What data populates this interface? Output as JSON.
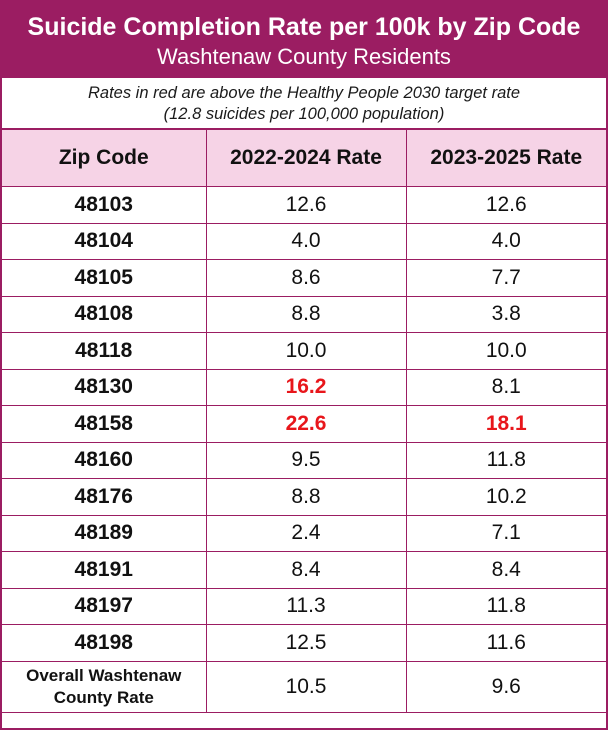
{
  "title": "Suicide Completion Rate per 100k by Zip Code",
  "subtitle": "Washtenaw County Residents",
  "note_line1": "Rates in red are above the Healthy People 2030 target rate",
  "note_line2": "(12.8 suicides per 100,000 population)",
  "colors": {
    "header_bar": "#9b1d62",
    "column_header_bg": "#f6d3e6",
    "above_target": "#e8161b"
  },
  "chart_data": {
    "type": "table",
    "target_rate": 12.8,
    "columns": [
      "Zip Code",
      "2022-2024 Rate",
      "2023-2025 Rate"
    ],
    "rows": [
      {
        "zip": "48103",
        "r2022": "12.6",
        "r2023": "12.6",
        "red2022": false,
        "red2023": false
      },
      {
        "zip": "48104",
        "r2022": "4.0",
        "r2023": "4.0",
        "red2022": false,
        "red2023": false
      },
      {
        "zip": "48105",
        "r2022": "8.6",
        "r2023": "7.7",
        "red2022": false,
        "red2023": false
      },
      {
        "zip": "48108",
        "r2022": "8.8",
        "r2023": "3.8",
        "red2022": false,
        "red2023": false
      },
      {
        "zip": "48118",
        "r2022": "10.0",
        "r2023": "10.0",
        "red2022": false,
        "red2023": false
      },
      {
        "zip": "48130",
        "r2022": "16.2",
        "r2023": "8.1",
        "red2022": true,
        "red2023": false
      },
      {
        "zip": "48158",
        "r2022": "22.6",
        "r2023": "18.1",
        "red2022": true,
        "red2023": true
      },
      {
        "zip": "48160",
        "r2022": "9.5",
        "r2023": "11.8",
        "red2022": false,
        "red2023": false
      },
      {
        "zip": "48176",
        "r2022": "8.8",
        "r2023": "10.2",
        "red2022": false,
        "red2023": false
      },
      {
        "zip": "48189",
        "r2022": "2.4",
        "r2023": "7.1",
        "red2022": false,
        "red2023": false
      },
      {
        "zip": "48191",
        "r2022": "8.4",
        "r2023": "8.4",
        "red2022": false,
        "red2023": false
      },
      {
        "zip": "48197",
        "r2022": "11.3",
        "r2023": "11.8",
        "red2022": false,
        "red2023": false
      },
      {
        "zip": "48198",
        "r2022": "12.5",
        "r2023": "11.6",
        "red2022": false,
        "red2023": false
      }
    ],
    "overall": {
      "label_line1": "Overall Washtenaw",
      "label_line2": "County Rate",
      "r2022": "10.5",
      "r2023": "9.6"
    }
  }
}
